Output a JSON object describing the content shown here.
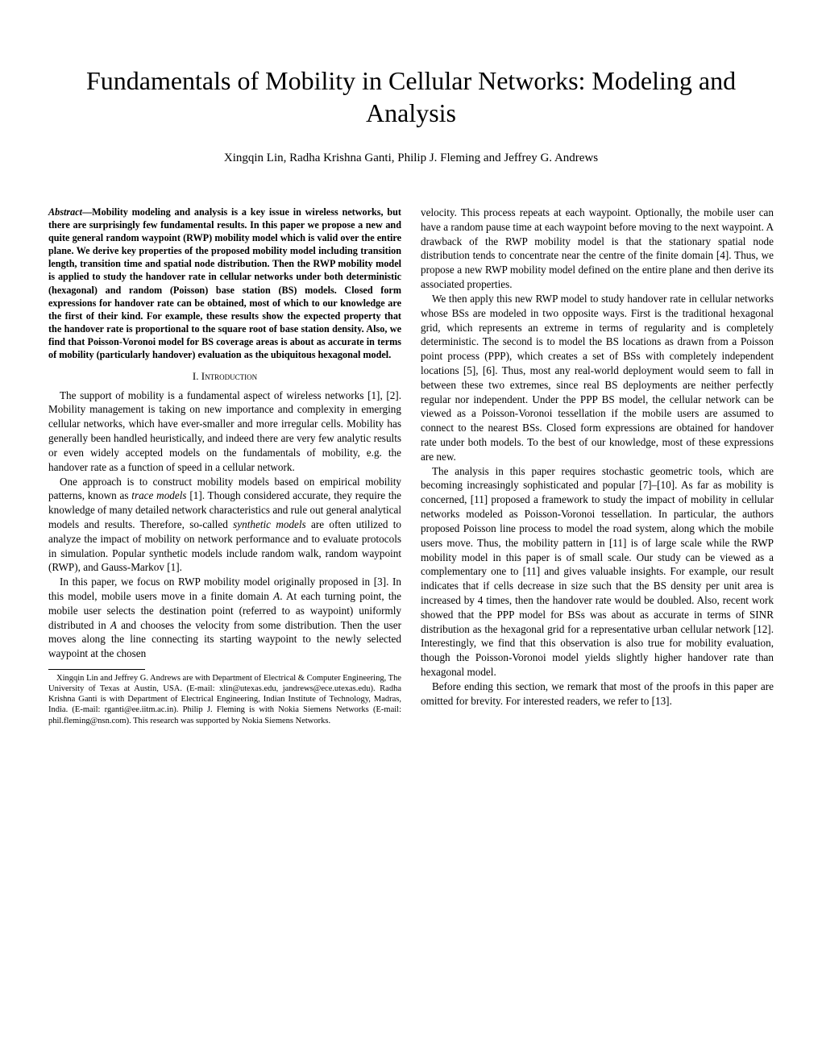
{
  "title": "Fundamentals of Mobility in Cellular Networks: Modeling and Analysis",
  "authors": "Xingqin Lin, Radha Krishna Ganti, Philip J. Fleming and Jeffrey G. Andrews",
  "abstract_label": "Abstract",
  "abstract_text": "—Mobility modeling and analysis is a key issue in wireless networks, but there are surprisingly few fundamental results. In this paper we propose a new and quite general random waypoint (RWP) mobility model which is valid over the entire plane. We derive key properties of the proposed mobility model including transition length, transition time and spatial node distribution. Then the RWP mobility model is applied to study the handover rate in cellular networks under both deterministic (hexagonal) and random (Poisson) base station (BS) models. Closed form expressions for handover rate can be obtained, most of which to our knowledge are the first of their kind. For example, these results show the expected property that the handover rate is proportional to the square root of base station density. Also, we find that Poisson-Voronoi model for BS coverage areas is about as accurate in terms of mobility (particularly handover) evaluation as the ubiquitous hexagonal model.",
  "section1_heading": "I.  Introduction",
  "intro_p1": "The support of mobility is a fundamental aspect of wireless networks [1], [2]. Mobility management is taking on new importance and complexity in emerging cellular networks, which have ever-smaller and more irregular cells. Mobility has generally been handled heuristically, and indeed there are very few analytic results or even widely accepted models on the fundamentals of mobility, e.g. the handover rate as a function of speed in a cellular network.",
  "intro_p2a": "One approach is to construct mobility models based on empirical mobility patterns, known as ",
  "intro_p2_em1": "trace models",
  "intro_p2b": " [1]. Though considered accurate, they require the knowledge of many detailed network characteristics and rule out general analytical models and results. Therefore, so-called ",
  "intro_p2_em2": "synthetic models",
  "intro_p2c": " are often utilized to analyze the impact of mobility on network performance and to evaluate protocols in simulation. Popular synthetic models include random walk, random waypoint (RWP), and Gauss-Markov [1].",
  "intro_p3a": "In this paper, we focus on RWP mobility model originally proposed in [3]. In this model, mobile users move in a finite domain ",
  "intro_p3_A1": "A",
  "intro_p3b": ". At each turning point, the mobile user selects the destination point (referred to as waypoint) uniformly distributed in ",
  "intro_p3_A2": "A",
  "intro_p3c": " and chooses the velocity from some distribution. Then the user moves along the line connecting its starting waypoint to the newly selected waypoint at the chosen",
  "footnote": "Xingqin Lin and Jeffrey G. Andrews are with Department of Electrical & Computer Engineering, The University of Texas at Austin, USA. (E-mail: xlin@utexas.edu, jandrews@ece.utexas.edu). Radha Krishna Ganti is with Department of Electrical Engineering, Indian Institute of Technology, Madras, India. (E-mail: rganti@ee.iitm.ac.in). Philip J. Fleming is with Nokia Siemens Networks (E-mail: phil.fleming@nsn.com). This research was supported by Nokia Siemens Networks.",
  "col2_p1": "velocity. This process repeats at each waypoint. Optionally, the mobile user can have a random pause time at each waypoint before moving to the next waypoint. A drawback of the RWP mobility model is that the stationary spatial node distribution tends to concentrate near the centre of the finite domain [4]. Thus, we propose a new RWP mobility model defined on the entire plane and then derive its associated properties.",
  "col2_p2": "We then apply this new RWP model to study handover rate in cellular networks whose BSs are modeled in two opposite ways. First is the traditional hexagonal grid, which represents an extreme in terms of regularity and is completely deterministic. The second is to model the BS locations as drawn from a Poisson point process (PPP), which creates a set of BSs with completely independent locations [5], [6]. Thus, most any real-world deployment would seem to fall in between these two extremes, since real BS deployments are neither perfectly regular nor independent. Under the PPP BS model, the cellular network can be viewed as a Poisson-Voronoi tessellation if the mobile users are assumed to connect to the nearest BSs. Closed form expressions are obtained for handover rate under both models. To the best of our knowledge, most of these expressions are new.",
  "col2_p3": "The analysis in this paper requires stochastic geometric tools, which are becoming increasingly sophisticated and popular [7]–[10]. As far as mobility is concerned, [11] proposed a framework to study the impact of mobility in cellular networks modeled as Poisson-Voronoi tessellation. In particular, the authors proposed Poisson line process to model the road system, along which the mobile users move. Thus, the mobility pattern in [11] is of large scale while the RWP mobility model in this paper is of small scale. Our study can be viewed as a complementary one to [11] and gives valuable insights. For example, our result indicates that if cells decrease in size such that the BS density per unit area is increased by 4 times, then the handover rate would be doubled. Also, recent work showed that the PPP model for BSs was about as accurate in terms of SINR distribution as the hexagonal grid for a representative urban cellular network [12]. Interestingly, we find that this observation is also true for mobility evaluation, though the Poisson-Voronoi model yields slightly higher handover rate than hexagonal model.",
  "col2_p4": "Before ending this section, we remark that most of the proofs in this paper are omitted for brevity. For interested readers, we refer to [13]."
}
